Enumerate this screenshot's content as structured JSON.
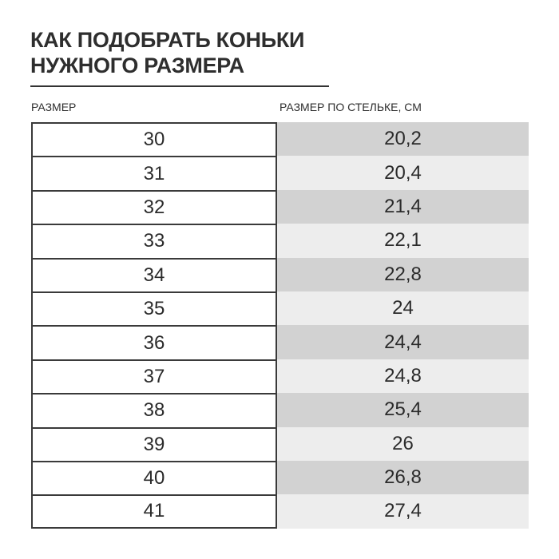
{
  "title_line1": "КАК ПОДОБРАТЬ КОНЬКИ",
  "title_line2": "НУЖНОГО РАЗМЕРА",
  "headers": {
    "size": "РАЗМЕР",
    "insole": "РАЗМЕР ПО СТЕЛЬКЕ, СМ"
  },
  "rows": [
    {
      "size": "30",
      "insole": "20,2"
    },
    {
      "size": "31",
      "insole": "20,4"
    },
    {
      "size": "32",
      "insole": "21,4"
    },
    {
      "size": "33",
      "insole": "22,1"
    },
    {
      "size": "34",
      "insole": "22,8"
    },
    {
      "size": "35",
      "insole": "24"
    },
    {
      "size": "36",
      "insole": "24,4"
    },
    {
      "size": "37",
      "insole": "24,8"
    },
    {
      "size": "38",
      "insole": "25,4"
    },
    {
      "size": "39",
      "insole": "26"
    },
    {
      "size": "40",
      "insole": "26,8"
    },
    {
      "size": "41",
      "insole": "27,4"
    }
  ],
  "colors": {
    "stripe_dark": "#d2d2d2",
    "stripe_light": "#ededed",
    "text": "#2b2b2b"
  }
}
